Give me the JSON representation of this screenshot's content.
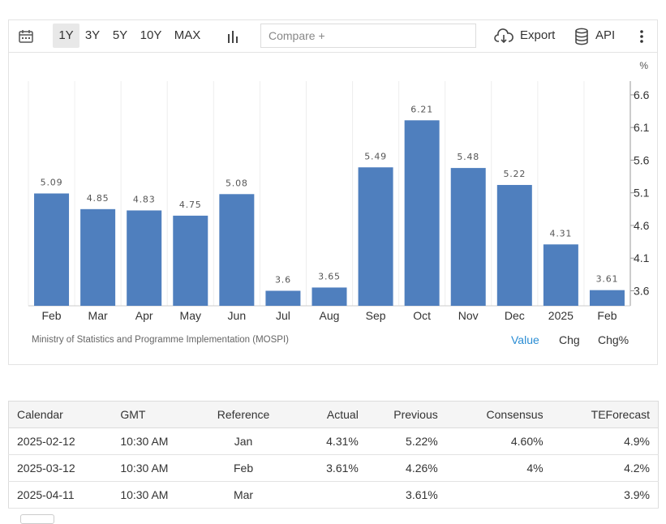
{
  "toolbar": {
    "ranges": [
      "1Y",
      "3Y",
      "5Y",
      "10Y",
      "MAX"
    ],
    "active_range": "1Y",
    "compare_placeholder": "Compare +",
    "export_label": "Export",
    "api_label": "API"
  },
  "chart_data": {
    "type": "bar",
    "unit": "%",
    "categories": [
      "Feb",
      "Mar",
      "Apr",
      "May",
      "Jun",
      "Jul",
      "Aug",
      "Sep",
      "Oct",
      "Nov",
      "Dec",
      "2025",
      "Feb"
    ],
    "values": [
      5.09,
      4.85,
      4.83,
      4.75,
      5.08,
      3.6,
      3.65,
      5.49,
      6.21,
      5.48,
      5.22,
      4.31,
      3.61
    ],
    "value_labels": [
      "5.09",
      "4.85",
      "4.83",
      "4.75",
      "5.08",
      "3.6",
      "3.65",
      "5.49",
      "6.21",
      "5.48",
      "5.22",
      "4.31",
      "3.61"
    ],
    "yticks": [
      3.6,
      4.1,
      4.6,
      5.1,
      5.6,
      6.1,
      6.6
    ],
    "ylim": [
      3.37,
      6.81
    ],
    "y_axis_position": "right",
    "bar_color": "#4f7fbe"
  },
  "source": "Ministry of Statistics and Programme Implementation (MOSPI)",
  "tabs": [
    "Value",
    "Chg",
    "Chg%"
  ],
  "active_tab": "Value",
  "calendar": {
    "headers": [
      "Calendar",
      "GMT",
      "Reference",
      "Actual",
      "Previous",
      "Consensus",
      "TEForecast"
    ],
    "rows": [
      [
        "2025-02-12",
        "10:30 AM",
        "Jan",
        "4.31%",
        "5.22%",
        "4.60%",
        "4.9%"
      ],
      [
        "2025-03-12",
        "10:30 AM",
        "Feb",
        "3.61%",
        "4.26%",
        "4%",
        "4.2%"
      ],
      [
        "2025-04-11",
        "10:30 AM",
        "Mar",
        "",
        "3.61%",
        "",
        "3.9%"
      ]
    ]
  }
}
